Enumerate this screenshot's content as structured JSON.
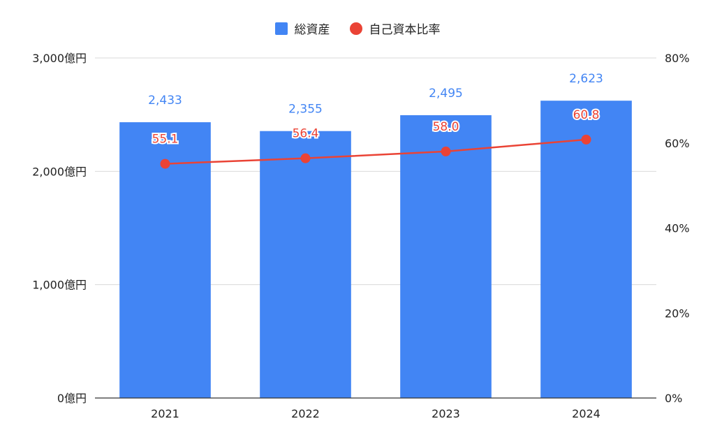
{
  "chart_data": {
    "type": "bar",
    "categories": [
      "2021",
      "2022",
      "2023",
      "2024"
    ],
    "series": [
      {
        "name": "総資産",
        "type": "bar",
        "axis": "left",
        "values": [
          2433,
          2355,
          2495,
          2623
        ],
        "labels": [
          "2,433",
          "2,355",
          "2,495",
          "2,623"
        ],
        "color": "#4285f4"
      },
      {
        "name": "自己資本比率",
        "type": "line",
        "axis": "right",
        "values": [
          55.1,
          56.4,
          58.0,
          60.8
        ],
        "labels": [
          "55.1",
          "56.4",
          "58.0",
          "60.8"
        ],
        "color": "#ea4335"
      }
    ],
    "y_left": {
      "range": [
        0,
        3000
      ],
      "ticks": [
        0,
        1000,
        2000,
        3000
      ],
      "tick_labels": [
        "0億円",
        "1,000億円",
        "2,000億円",
        "3,000億円"
      ]
    },
    "y_right": {
      "range": [
        0,
        80
      ],
      "ticks": [
        0,
        20,
        40,
        60,
        80
      ],
      "tick_labels": [
        "0%",
        "20%",
        "40%",
        "60%",
        "80%"
      ]
    },
    "grid": true,
    "legend_position": "top-center"
  }
}
